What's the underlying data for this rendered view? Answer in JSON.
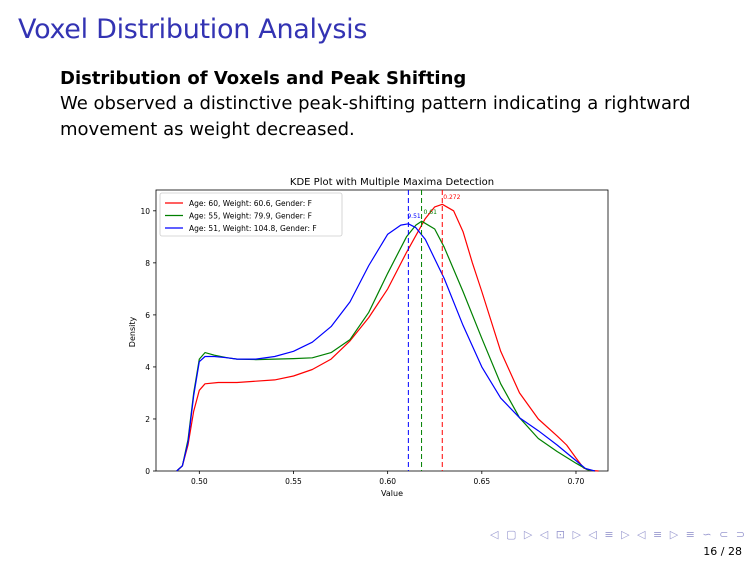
{
  "slide": {
    "title": "Voxel Distribution Analysis",
    "block_title": "Distribution of Voxels and Peak Shifting",
    "block_text": "We observed a distinctive peak-shifting pattern indicating a rightward movement as weight decreased.",
    "nav_symbols": "◁ ▢ ▷ ◁ ⊡ ▷ ◁ ≡ ▷ ◁ ≡ ▷ ≡ ∽ ⊂ ⊃",
    "page": "16 / 28"
  },
  "chart_data": {
    "type": "line",
    "title": "KDE Plot with Multiple Maxima Detection",
    "xlabel": "Value",
    "ylabel": "Density",
    "xlim": [
      0.477,
      0.717
    ],
    "ylim": [
      0,
      10.8
    ],
    "xticks": [
      0.5,
      0.55,
      0.6,
      0.65,
      0.7
    ],
    "xtick_labels": [
      "0.50",
      "0.55",
      "0.60",
      "0.65",
      "0.70"
    ],
    "yticks": [
      0,
      2,
      4,
      6,
      8,
      10
    ],
    "ytick_labels": [
      "0",
      "2",
      "4",
      "6",
      "8",
      "10"
    ],
    "legend_position": "top-left",
    "grid": false,
    "series": [
      {
        "name": "Age: 60, Weight: 60.6, Gender: F",
        "color": "#ff0000",
        "peak_x": 0.629,
        "peak_label": "0.272",
        "x": [
          0.488,
          0.491,
          0.494,
          0.497,
          0.5,
          0.503,
          0.51,
          0.52,
          0.53,
          0.54,
          0.55,
          0.56,
          0.57,
          0.58,
          0.59,
          0.6,
          0.61,
          0.62,
          0.625,
          0.629,
          0.635,
          0.64,
          0.645,
          0.65,
          0.66,
          0.67,
          0.68,
          0.69,
          0.695,
          0.7,
          0.704,
          0.708,
          0.712
        ],
        "y": [
          0.0,
          0.2,
          1.0,
          2.3,
          3.1,
          3.35,
          3.4,
          3.4,
          3.45,
          3.5,
          3.65,
          3.9,
          4.3,
          5.0,
          5.9,
          7.0,
          8.4,
          9.7,
          10.15,
          10.25,
          10.0,
          9.2,
          8.0,
          6.9,
          4.6,
          3.0,
          2.0,
          1.35,
          1.0,
          0.5,
          0.12,
          0.02,
          0.0
        ]
      },
      {
        "name": "Age: 55, Weight: 79.9, Gender: F",
        "color": "#008000",
        "peak_x": 0.618,
        "peak_label": "0.61",
        "x": [
          0.488,
          0.491,
          0.494,
          0.497,
          0.5,
          0.503,
          0.508,
          0.515,
          0.52,
          0.53,
          0.54,
          0.55,
          0.56,
          0.57,
          0.58,
          0.59,
          0.6,
          0.61,
          0.615,
          0.618,
          0.625,
          0.63,
          0.64,
          0.65,
          0.66,
          0.67,
          0.68,
          0.69,
          0.7,
          0.706,
          0.71
        ],
        "y": [
          0.0,
          0.2,
          1.2,
          3.0,
          4.3,
          4.55,
          4.45,
          4.35,
          4.3,
          4.28,
          4.3,
          4.32,
          4.35,
          4.55,
          5.05,
          6.1,
          7.6,
          9.0,
          9.45,
          9.6,
          9.3,
          8.6,
          6.9,
          5.1,
          3.35,
          2.05,
          1.25,
          0.75,
          0.3,
          0.05,
          0.0
        ]
      },
      {
        "name": "Age: 51, Weight: 104.8, Gender: F",
        "color": "#0000ff",
        "peak_x": 0.611,
        "peak_label": "9.51",
        "x": [
          0.488,
          0.491,
          0.494,
          0.497,
          0.5,
          0.503,
          0.508,
          0.515,
          0.52,
          0.53,
          0.54,
          0.55,
          0.56,
          0.57,
          0.58,
          0.59,
          0.6,
          0.607,
          0.611,
          0.615,
          0.62,
          0.63,
          0.64,
          0.65,
          0.66,
          0.67,
          0.68,
          0.69,
          0.7,
          0.705,
          0.71
        ],
        "y": [
          0.0,
          0.2,
          1.1,
          2.9,
          4.2,
          4.4,
          4.4,
          4.35,
          4.3,
          4.3,
          4.4,
          4.6,
          4.95,
          5.55,
          6.5,
          7.9,
          9.1,
          9.45,
          9.5,
          9.35,
          8.9,
          7.4,
          5.6,
          4.0,
          2.8,
          2.05,
          1.55,
          1.0,
          0.4,
          0.1,
          0.0
        ]
      }
    ]
  }
}
